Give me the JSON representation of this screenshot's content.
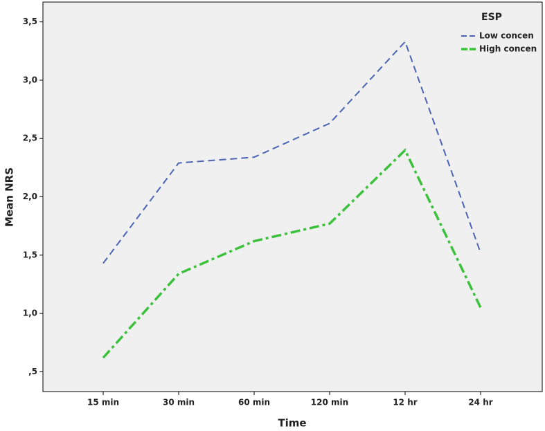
{
  "chart_data": {
    "type": "line",
    "x_label": "Time",
    "y_label": "Mean NRS",
    "categories": [
      "15 min",
      "30 min",
      "60 min",
      "120 min",
      "12 hr",
      "24 hr"
    ],
    "series": [
      {
        "name": "Low concen",
        "color": "#4a63b5",
        "dash": "10 6",
        "values": [
          1.43,
          2.29,
          2.34,
          2.63,
          3.33,
          1.52
        ]
      },
      {
        "name": "High concen",
        "color": "#3cc13c",
        "dash": "14 5 4 5",
        "values": [
          0.62,
          1.34,
          1.62,
          1.77,
          2.4,
          1.05
        ]
      }
    ],
    "legend_title": "ESP",
    "legend": "top-right",
    "ylim": [
      0.33,
      3.67
    ],
    "yticks": [
      {
        "value": 0.5,
        "label": ",5"
      },
      {
        "value": 1.0,
        "label": "1,0"
      },
      {
        "value": 1.5,
        "label": "1,5"
      },
      {
        "value": 2.0,
        "label": "2,0"
      },
      {
        "value": 2.5,
        "label": "2,5"
      },
      {
        "value": 3.0,
        "label": "3,0"
      },
      {
        "value": 3.5,
        "label": "3,5"
      }
    ]
  }
}
